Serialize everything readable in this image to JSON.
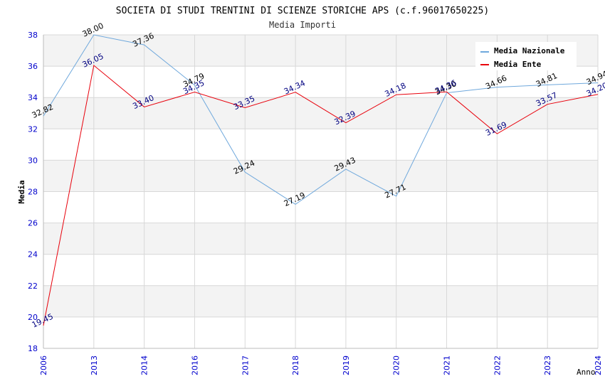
{
  "chart_data": {
    "type": "line",
    "title": "SOCIETA DI STUDI TRENTINI DI SCIENZE STORICHE APS (c.f.96017650225)",
    "subtitle": "Media Importi",
    "xlabel": "Anno",
    "ylabel": "Media",
    "ylim": [
      18,
      38
    ],
    "yticks": [
      "18",
      "20",
      "22",
      "24",
      "26",
      "28",
      "30",
      "32",
      "34",
      "36",
      "38"
    ],
    "categories": [
      "2006",
      "2013",
      "2014",
      "2016",
      "2017",
      "2018",
      "2019",
      "2020",
      "2021",
      "2022",
      "2023",
      "2024"
    ],
    "legend_position": "top-right",
    "grid": true,
    "series": [
      {
        "name": "Media Nazionale",
        "color": "#6fa8dc",
        "label_color": "#000000",
        "values": [
          32.82,
          38.0,
          37.36,
          34.79,
          29.24,
          27.19,
          29.43,
          27.71,
          34.3,
          34.66,
          34.81,
          34.94
        ],
        "labels": [
          "32.82",
          "38.00",
          "37.36",
          "34.79",
          "29.24",
          "27.19",
          "29.43",
          "27.71",
          "34.30",
          "34.66",
          "34.81",
          "34.94"
        ]
      },
      {
        "name": "Media Ente",
        "color": "#e8000b",
        "label_color": "#000080",
        "values": [
          19.45,
          36.05,
          33.4,
          34.35,
          33.35,
          34.34,
          32.39,
          34.18,
          34.36,
          31.69,
          33.57,
          34.2
        ],
        "labels": [
          "19.45",
          "36.05",
          "33.40",
          "34.35",
          "33.35",
          "34.34",
          "32.39",
          "34.18",
          "34.36",
          "31.69",
          "33.57",
          "34.20"
        ]
      }
    ]
  },
  "colors": {
    "band_gray": "#f3f3f3",
    "grid": "#d8d8d8",
    "axis_tick_text": "#0000cc"
  }
}
